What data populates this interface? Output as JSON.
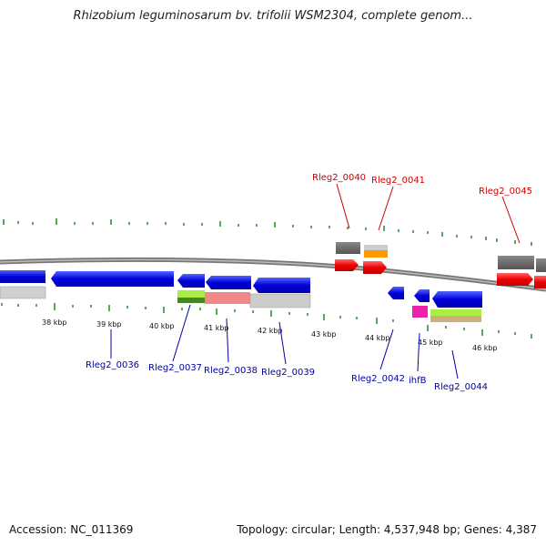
{
  "title": "Rhizobium leguminosarum bv. trifolii WSM2304, complete genom...",
  "footer": {
    "accession": "Accession: NC_011369",
    "topology": "Topology: circular; Length: 4,537,948 bp; Genes: 4,387"
  },
  "kbp_labels": [
    "38 kbp",
    "39 kbp",
    "40 kbp",
    "41 kbp",
    "42 kbp",
    "43 kbp",
    "44 kbp",
    "45 kbp",
    "46 kbp"
  ],
  "gene_labels_top": [
    "Rleg2_0040",
    "Rleg2_0041",
    "Rleg2_0045"
  ],
  "gene_labels_bottom": [
    "Rleg2_0036",
    "Rleg2_0037",
    "Rleg2_0038",
    "Rleg2_0039",
    "Rleg2_0042",
    "ihfB",
    "Rleg2_0044"
  ],
  "colors": {
    "forward_gene": "#ee0000",
    "reverse_gene": "#0000dd",
    "backbone": "#777777",
    "gc_tick": "#228822",
    "label_top": "#cc0000",
    "label_bottom": "#0000aa"
  }
}
